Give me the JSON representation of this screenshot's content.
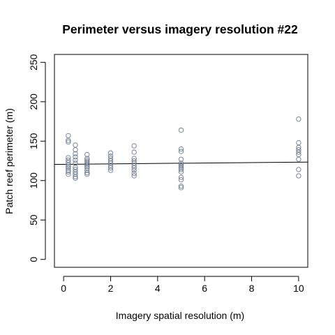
{
  "chart_data": {
    "type": "scatter",
    "title": "Perimeter versus imagery resolution #22",
    "xlabel": "Imagery spatial resolution (m)",
    "ylabel": "Patch reef perimeter (m)",
    "xlim": [
      -0.39,
      10.39
    ],
    "ylim": [
      -10,
      260
    ],
    "xticks": [
      "0",
      "2",
      "4",
      "6",
      "8",
      "10"
    ],
    "yticks": [
      "0",
      "50",
      "100",
      "150",
      "200",
      "250"
    ],
    "grid": false,
    "point_color": "#6b7a8f",
    "line_color": "#000000",
    "trend_line": {
      "x": [
        -0.39,
        10.39
      ],
      "y": [
        120.5,
        123.5
      ]
    },
    "points": [
      [
        0.2,
        157
      ],
      [
        0.2,
        151
      ],
      [
        0.2,
        149
      ],
      [
        0.2,
        129
      ],
      [
        0.2,
        126
      ],
      [
        0.2,
        123
      ],
      [
        0.2,
        120
      ],
      [
        0.2,
        118
      ],
      [
        0.2,
        116
      ],
      [
        0.2,
        113
      ],
      [
        0.2,
        111
      ],
      [
        0.2,
        108
      ],
      [
        0.5,
        145
      ],
      [
        0.5,
        139
      ],
      [
        0.5,
        134
      ],
      [
        0.5,
        130
      ],
      [
        0.5,
        126
      ],
      [
        0.5,
        122
      ],
      [
        0.5,
        117
      ],
      [
        0.5,
        114
      ],
      [
        0.5,
        111
      ],
      [
        0.5,
        108
      ],
      [
        0.5,
        105
      ],
      [
        0.5,
        103
      ],
      [
        1,
        133
      ],
      [
        1,
        128
      ],
      [
        1,
        126
      ],
      [
        1,
        124
      ],
      [
        1,
        122
      ],
      [
        1,
        120
      ],
      [
        1,
        118
      ],
      [
        1,
        116
      ],
      [
        1,
        113
      ],
      [
        1,
        110
      ],
      [
        1,
        108
      ],
      [
        2,
        135
      ],
      [
        2,
        131
      ],
      [
        2,
        128
      ],
      [
        2,
        125
      ],
      [
        2,
        122
      ],
      [
        2,
        119
      ],
      [
        2,
        116
      ],
      [
        2,
        113
      ],
      [
        3,
        144
      ],
      [
        3,
        136
      ],
      [
        3,
        128
      ],
      [
        3,
        125
      ],
      [
        3,
        122
      ],
      [
        3,
        119
      ],
      [
        3,
        116
      ],
      [
        3,
        113
      ],
      [
        3,
        109
      ],
      [
        3,
        106
      ],
      [
        5,
        164
      ],
      [
        5,
        140
      ],
      [
        5,
        137
      ],
      [
        5,
        127
      ],
      [
        5,
        122
      ],
      [
        5,
        120
      ],
      [
        5,
        118
      ],
      [
        5,
        116
      ],
      [
        5,
        114
      ],
      [
        5,
        111
      ],
      [
        5,
        104
      ],
      [
        5,
        101
      ],
      [
        5,
        93
      ],
      [
        5,
        91
      ],
      [
        10,
        178
      ],
      [
        10,
        148
      ],
      [
        10,
        142
      ],
      [
        10,
        139
      ],
      [
        10,
        136
      ],
      [
        10,
        133
      ],
      [
        10,
        127
      ],
      [
        10,
        114
      ],
      [
        10,
        106
      ]
    ]
  }
}
